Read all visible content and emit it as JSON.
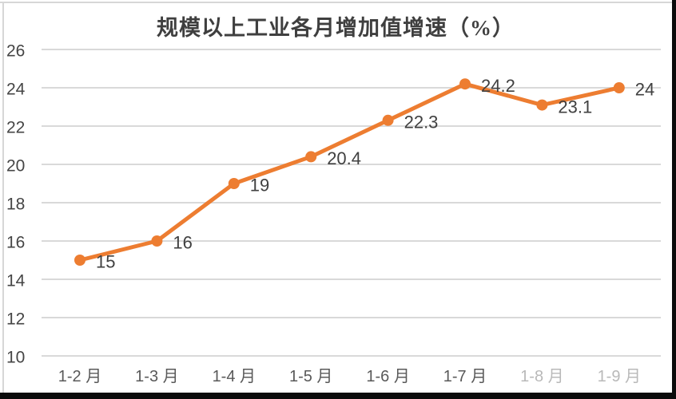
{
  "chart_data": {
    "type": "line",
    "title": "规模以上工业各月增加值增速（%）",
    "categories": [
      "1-2 月",
      "1-3 月",
      "1-4 月",
      "1-5 月",
      "1-6 月",
      "1-7 月",
      "1-8 月",
      "1-9 月"
    ],
    "series": [
      {
        "name": "规模以上工业各月增加值增速",
        "values": [
          15,
          16,
          19,
          20.4,
          22.3,
          24.2,
          23.1,
          24
        ],
        "data_labels": [
          "15",
          "16",
          "19",
          "20.4",
          "22.3",
          "24.2",
          "23.1",
          "24"
        ],
        "line_color": "#ED7D31",
        "marker_color": "#ED7D31"
      }
    ],
    "xlabel": "",
    "ylabel": "",
    "ylim": [
      10,
      26
    ],
    "ytick_step": 2,
    "yticks": [
      10,
      12,
      14,
      16,
      18,
      20,
      22,
      24,
      26
    ],
    "grid": true,
    "legend": "none",
    "data_label_position": "right",
    "muted_category_indices": [
      6,
      7
    ]
  },
  "frame": {
    "border_color": "#d7d7d7",
    "letterbox_color": "#0b0b0b",
    "background_color": "#ffffff"
  }
}
